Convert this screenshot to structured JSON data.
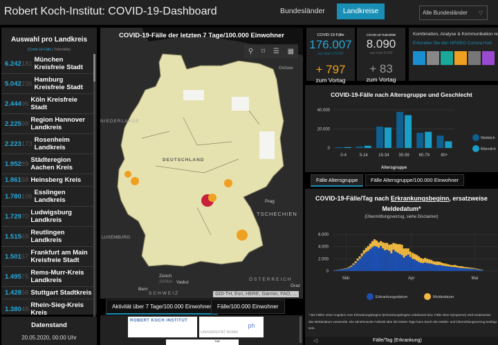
{
  "header": {
    "title": "Robert Koch-Institut: COVID-19-Dashboard",
    "tab_bundeslaender": "Bundesländer",
    "tab_landkreise": "Landkreise",
    "dropdown_value": "Alle Bundesländer",
    "accent": "#1a8fb5"
  },
  "list": {
    "title": "Auswahl pro Landkreis",
    "sub_cases": "Covid-19-Fälle",
    "sub_deaths": "Todesfälle",
    "items": [
      {
        "cases": "6.242",
        "deaths": "181",
        "name": "München Kreisfreie Stadt"
      },
      {
        "cases": "5.042",
        "deaths": "236",
        "name": "Hamburg Kreisfreie Stadt"
      },
      {
        "cases": "2.444",
        "deaths": "96",
        "name": "Köln Kreisfreie Stadt"
      },
      {
        "cases": "2.225",
        "deaths": "98",
        "name": "Region Hannover Landkreis"
      },
      {
        "cases": "2.223",
        "deaths": "173",
        "name": "Rosenheim Landkreis"
      },
      {
        "cases": "1.952",
        "deaths": "89",
        "name": "Städteregion Aachen Kreis"
      },
      {
        "cases": "1.861",
        "deaths": "68",
        "name": "Heinsberg Kreis"
      },
      {
        "cases": "1.780",
        "deaths": "106",
        "name": "Esslingen Landkreis"
      },
      {
        "cases": "1.729",
        "deaths": "70",
        "name": "Ludwigsburg Landkreis"
      },
      {
        "cases": "1.515",
        "deaths": "69",
        "name": "Reutlingen Landkreis"
      },
      {
        "cases": "1.501",
        "deaths": "57",
        "name": "Frankfurt am Main Kreisfreie Stadt"
      },
      {
        "cases": "1.495",
        "deaths": "75",
        "name": "Rems-Murr-Kreis Landkreis"
      },
      {
        "cases": "1.428",
        "deaths": "56",
        "name": "Stuttgart Stadtkreis"
      },
      {
        "cases": "1.380",
        "deaths": "48",
        "name": "Rhein-Sieg-Kreis Kreis"
      }
    ]
  },
  "datenstand": {
    "label": "Datenstand",
    "value": "20.05.2020, 00:00 Uhr"
  },
  "map": {
    "title": "COVID-19-Fälle der letzten 7 Tage/100.000 Einwohner",
    "labels": {
      "ostsee": "Ostsee",
      "de": "DEUTSCHLAND",
      "prag": "Prag",
      "zurich": "Zürich",
      "vaduz": "Vaduz",
      "at": "ÖSTERREICH",
      "ch": "SCHWEIZ",
      "bern": "Bern",
      "graz": "Graz",
      "nl": "NIEDERLANDE",
      "lux": "LUXEMBURG",
      "cz": "TSCHECHIEN",
      "scale": "200km"
    },
    "attribution": "GDI-TH, Esri, HERE, Garmin, FAO, ...",
    "tab_active": "Aktivität über 7 Tage/100.000 Einwohner",
    "tab_other": "Fälle/100.000 Einwohner"
  },
  "logos": {
    "rki": "ROBERT KOCH INSTITUT",
    "bonn": "UNIVERSITÄT BONN",
    "ph": "ph",
    "the": "THE"
  },
  "stats": {
    "cases_label": "COVID-19-Fälle",
    "cases": "176.007",
    "cases_total": "aus total 176.007",
    "cases_delta": "+ 797",
    "deaths_label": "COVID-19-Todesfälle",
    "deaths": "8.090",
    "deaths_total": "aus total 8.090",
    "deaths_delta": "+ 83",
    "vortag": "zum Vortag",
    "info_text": "Kombination, Analyse & Kommunikation relevanter Daten zum Coronavirus",
    "info_link": "Erkunden Sie den NPGEO Corona Hub",
    "case_color": "#2aa8d8",
    "delta_color": "#f0a020"
  },
  "age_chart": {
    "title": "COVID-19-Fälle nach Altersgruppe und Geschlecht",
    "tab_active": "Fälle Altersgruppe",
    "tab_other": "Fälle Altersgruppe/100.000 Einwohner",
    "chart_data": {
      "type": "bar",
      "categories": [
        "0-4",
        "5-14",
        "15-34",
        "35-59",
        "60-79",
        "80+"
      ],
      "xlabel": "Altersgruppe",
      "ylim": [
        0,
        40000
      ],
      "yticks": [
        "0",
        "20.000",
        "40.000"
      ],
      "legend": "right",
      "series": [
        {
          "name": "Weiblich",
          "color": "#0f5f8f",
          "values": [
            800,
            1500,
            22500,
            38000,
            16000,
            13000
          ]
        },
        {
          "name": "Männlich",
          "color": "#1a9fc8",
          "values": [
            900,
            2300,
            21500,
            34500,
            17000,
            7000
          ]
        }
      ]
    }
  },
  "epi_chart": {
    "title_pre": "COVID-19-Fälle/Tag nach ",
    "title_u": "Erkrankungsbeginn",
    "title_post": ", ersatzweise Meldedatum*",
    "subtitle": "(Übermittlungsverzug, siehe Disclaimer)",
    "note": "* Bei Fällen ohne Angaben zum Erkrankungsbeginn (Erkrankungsbeginn unbekannt bzw. Fälle ohne Symptome) wird ersatzweise das Meldedatum verwendet. Die abnehmende Fallzahl über die letzten Tage kann durch den Melde- und Übermittlungsverzug bedingt sein.",
    "nav_label": "Fälle/Tag (Erkrankung)",
    "chart_data": {
      "type": "bar",
      "stacked": true,
      "x_start": "2020-02-24",
      "x_end": "2020-05-04",
      "xticks": [
        "Mär",
        "Apr",
        "Mai"
      ],
      "yticks": [
        "0",
        "2.000",
        "4.000",
        "6.000"
      ],
      "ylim": [
        0,
        6000
      ],
      "legend": "bottom",
      "series": [
        {
          "name": "Erkrankungsdatum",
          "color": "#1c4fb0",
          "values": [
            100,
            150,
            200,
            250,
            300,
            350,
            400,
            550,
            700,
            1000,
            1300,
            1700,
            2000,
            2400,
            2800,
            3100,
            3300,
            3600,
            3900,
            4100,
            4000,
            3800,
            4100,
            3700,
            3400,
            3500,
            3300,
            2900,
            3500,
            3200,
            3000,
            2800,
            2600,
            2200,
            2500,
            2700,
            2300,
            2000,
            1900,
            1700,
            1500,
            1350,
            1300,
            1400,
            1300,
            1250,
            1200,
            1100,
            1000,
            950,
            1000,
            900,
            850,
            800,
            750,
            700,
            650,
            650,
            600,
            550,
            500,
            480,
            450,
            420,
            400,
            380,
            350,
            300,
            250,
            200,
            150
          ]
        },
        {
          "name": "Meldedatum",
          "color": "#f0b840",
          "values": [
            20,
            30,
            40,
            50,
            60,
            80,
            100,
            150,
            200,
            250,
            300,
            350,
            400,
            500,
            600,
            700,
            800,
            900,
            1000,
            1100,
            1000,
            900,
            800,
            1000,
            1200,
            1100,
            1000,
            1500,
            1100,
            1300,
            1400,
            1600,
            1700,
            1500,
            1200,
            1000,
            900,
            1000,
            900,
            950,
            900,
            800,
            700,
            750,
            700,
            650,
            600,
            500,
            550,
            600,
            500,
            450,
            400,
            400,
            350,
            300,
            300,
            350,
            300,
            250,
            300,
            250,
            200,
            200,
            180,
            150,
            150,
            120,
            100,
            80,
            60
          ]
        }
      ]
    }
  }
}
